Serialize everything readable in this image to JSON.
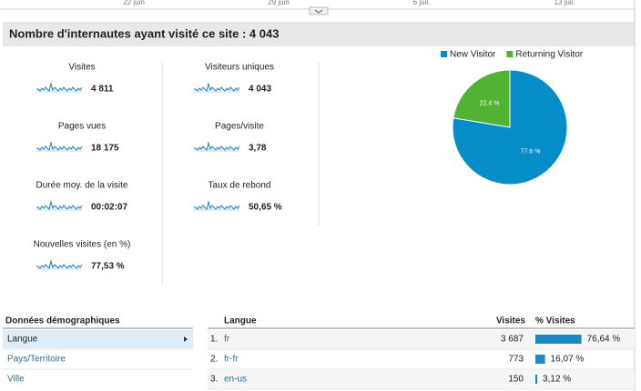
{
  "timeline": {
    "labels": [
      "22 juin",
      "29 juin",
      "6 juil.",
      "13 juil."
    ]
  },
  "header": {
    "title": "Nombre d'internautes ayant visité ce site : 4 043"
  },
  "metrics": [
    {
      "label": "Visites",
      "value": "4 811"
    },
    {
      "label": "Visiteurs uniques",
      "value": "4 043"
    },
    {
      "label": "Pages vues",
      "value": "18 175"
    },
    {
      "label": "Pages/visite",
      "value": "3,78"
    },
    {
      "label": "Durée moy. de la visite",
      "value": "00:02:07"
    },
    {
      "label": "Taux de rebond",
      "value": "50,65 %"
    },
    {
      "label": "Nouvelles visites (en %)",
      "value": "77,53 %"
    }
  ],
  "chart_data": {
    "type": "pie",
    "categories": [
      "New Visitor",
      "Returning Visitor"
    ],
    "values": [
      77.6,
      22.4
    ],
    "value_labels": [
      "77.6 %",
      "22.4 %"
    ],
    "colors": [
      "#058dc7",
      "#50b432"
    ],
    "legend": "top"
  },
  "demographics": {
    "title": "Données démographiques",
    "items": [
      "Langue",
      "Pays/Territoire",
      "Ville"
    ]
  },
  "table": {
    "headers": [
      "Langue",
      "Visites",
      "% Visites"
    ],
    "rows": [
      {
        "rank": "1.",
        "name": "fr",
        "visits": "3 687",
        "share": 76.64,
        "share_label": "76,64 %"
      },
      {
        "rank": "2.",
        "name": "fr-fr",
        "visits": "773",
        "share": 16.07,
        "share_label": "16,07 %"
      },
      {
        "rank": "3.",
        "name": "en-us",
        "visits": "150",
        "share": 3.12,
        "share_label": "3,12 %"
      }
    ]
  }
}
